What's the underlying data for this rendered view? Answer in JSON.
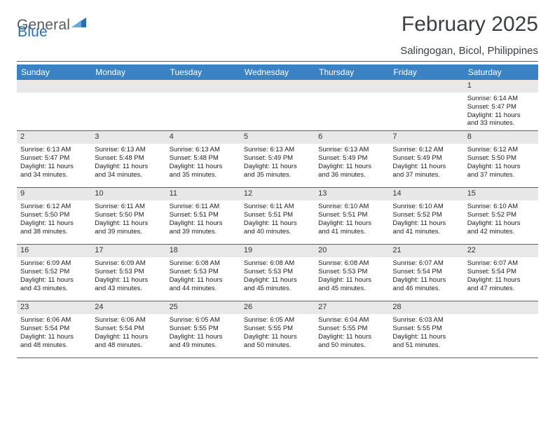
{
  "brand": {
    "general": "General",
    "blue": "Blue"
  },
  "title": "February 2025",
  "subtitle": "Salingogan, Bicol, Philippines",
  "colors": {
    "header_bar": "#3a82c4",
    "daynum_bg": "#e8e8e8",
    "rule": "#5a5f64",
    "text": "#222222",
    "title": "#3a3f44"
  },
  "weekdays": [
    "Sunday",
    "Monday",
    "Tuesday",
    "Wednesday",
    "Thursday",
    "Friday",
    "Saturday"
  ],
  "weeks": [
    [
      {
        "blank": true
      },
      {
        "blank": true
      },
      {
        "blank": true
      },
      {
        "blank": true
      },
      {
        "blank": true
      },
      {
        "blank": true
      },
      {
        "day": "1",
        "sunrise": "Sunrise: 6:14 AM",
        "sunset": "Sunset: 5:47 PM",
        "daylight1": "Daylight: 11 hours",
        "daylight2": "and 33 minutes."
      }
    ],
    [
      {
        "day": "2",
        "sunrise": "Sunrise: 6:13 AM",
        "sunset": "Sunset: 5:47 PM",
        "daylight1": "Daylight: 11 hours",
        "daylight2": "and 34 minutes."
      },
      {
        "day": "3",
        "sunrise": "Sunrise: 6:13 AM",
        "sunset": "Sunset: 5:48 PM",
        "daylight1": "Daylight: 11 hours",
        "daylight2": "and 34 minutes."
      },
      {
        "day": "4",
        "sunrise": "Sunrise: 6:13 AM",
        "sunset": "Sunset: 5:48 PM",
        "daylight1": "Daylight: 11 hours",
        "daylight2": "and 35 minutes."
      },
      {
        "day": "5",
        "sunrise": "Sunrise: 6:13 AM",
        "sunset": "Sunset: 5:49 PM",
        "daylight1": "Daylight: 11 hours",
        "daylight2": "and 35 minutes."
      },
      {
        "day": "6",
        "sunrise": "Sunrise: 6:13 AM",
        "sunset": "Sunset: 5:49 PM",
        "daylight1": "Daylight: 11 hours",
        "daylight2": "and 36 minutes."
      },
      {
        "day": "7",
        "sunrise": "Sunrise: 6:12 AM",
        "sunset": "Sunset: 5:49 PM",
        "daylight1": "Daylight: 11 hours",
        "daylight2": "and 37 minutes."
      },
      {
        "day": "8",
        "sunrise": "Sunrise: 6:12 AM",
        "sunset": "Sunset: 5:50 PM",
        "daylight1": "Daylight: 11 hours",
        "daylight2": "and 37 minutes."
      }
    ],
    [
      {
        "day": "9",
        "sunrise": "Sunrise: 6:12 AM",
        "sunset": "Sunset: 5:50 PM",
        "daylight1": "Daylight: 11 hours",
        "daylight2": "and 38 minutes."
      },
      {
        "day": "10",
        "sunrise": "Sunrise: 6:11 AM",
        "sunset": "Sunset: 5:50 PM",
        "daylight1": "Daylight: 11 hours",
        "daylight2": "and 39 minutes."
      },
      {
        "day": "11",
        "sunrise": "Sunrise: 6:11 AM",
        "sunset": "Sunset: 5:51 PM",
        "daylight1": "Daylight: 11 hours",
        "daylight2": "and 39 minutes."
      },
      {
        "day": "12",
        "sunrise": "Sunrise: 6:11 AM",
        "sunset": "Sunset: 5:51 PM",
        "daylight1": "Daylight: 11 hours",
        "daylight2": "and 40 minutes."
      },
      {
        "day": "13",
        "sunrise": "Sunrise: 6:10 AM",
        "sunset": "Sunset: 5:51 PM",
        "daylight1": "Daylight: 11 hours",
        "daylight2": "and 41 minutes."
      },
      {
        "day": "14",
        "sunrise": "Sunrise: 6:10 AM",
        "sunset": "Sunset: 5:52 PM",
        "daylight1": "Daylight: 11 hours",
        "daylight2": "and 41 minutes."
      },
      {
        "day": "15",
        "sunrise": "Sunrise: 6:10 AM",
        "sunset": "Sunset: 5:52 PM",
        "daylight1": "Daylight: 11 hours",
        "daylight2": "and 42 minutes."
      }
    ],
    [
      {
        "day": "16",
        "sunrise": "Sunrise: 6:09 AM",
        "sunset": "Sunset: 5:52 PM",
        "daylight1": "Daylight: 11 hours",
        "daylight2": "and 43 minutes."
      },
      {
        "day": "17",
        "sunrise": "Sunrise: 6:09 AM",
        "sunset": "Sunset: 5:53 PM",
        "daylight1": "Daylight: 11 hours",
        "daylight2": "and 43 minutes."
      },
      {
        "day": "18",
        "sunrise": "Sunrise: 6:08 AM",
        "sunset": "Sunset: 5:53 PM",
        "daylight1": "Daylight: 11 hours",
        "daylight2": "and 44 minutes."
      },
      {
        "day": "19",
        "sunrise": "Sunrise: 6:08 AM",
        "sunset": "Sunset: 5:53 PM",
        "daylight1": "Daylight: 11 hours",
        "daylight2": "and 45 minutes."
      },
      {
        "day": "20",
        "sunrise": "Sunrise: 6:08 AM",
        "sunset": "Sunset: 5:53 PM",
        "daylight1": "Daylight: 11 hours",
        "daylight2": "and 45 minutes."
      },
      {
        "day": "21",
        "sunrise": "Sunrise: 6:07 AM",
        "sunset": "Sunset: 5:54 PM",
        "daylight1": "Daylight: 11 hours",
        "daylight2": "and 46 minutes."
      },
      {
        "day": "22",
        "sunrise": "Sunrise: 6:07 AM",
        "sunset": "Sunset: 5:54 PM",
        "daylight1": "Daylight: 11 hours",
        "daylight2": "and 47 minutes."
      }
    ],
    [
      {
        "day": "23",
        "sunrise": "Sunrise: 6:06 AM",
        "sunset": "Sunset: 5:54 PM",
        "daylight1": "Daylight: 11 hours",
        "daylight2": "and 48 minutes."
      },
      {
        "day": "24",
        "sunrise": "Sunrise: 6:06 AM",
        "sunset": "Sunset: 5:54 PM",
        "daylight1": "Daylight: 11 hours",
        "daylight2": "and 48 minutes."
      },
      {
        "day": "25",
        "sunrise": "Sunrise: 6:05 AM",
        "sunset": "Sunset: 5:55 PM",
        "daylight1": "Daylight: 11 hours",
        "daylight2": "and 49 minutes."
      },
      {
        "day": "26",
        "sunrise": "Sunrise: 6:05 AM",
        "sunset": "Sunset: 5:55 PM",
        "daylight1": "Daylight: 11 hours",
        "daylight2": "and 50 minutes."
      },
      {
        "day": "27",
        "sunrise": "Sunrise: 6:04 AM",
        "sunset": "Sunset: 5:55 PM",
        "daylight1": "Daylight: 11 hours",
        "daylight2": "and 50 minutes."
      },
      {
        "day": "28",
        "sunrise": "Sunrise: 6:03 AM",
        "sunset": "Sunset: 5:55 PM",
        "daylight1": "Daylight: 11 hours",
        "daylight2": "and 51 minutes."
      },
      {
        "blank": true
      }
    ]
  ]
}
